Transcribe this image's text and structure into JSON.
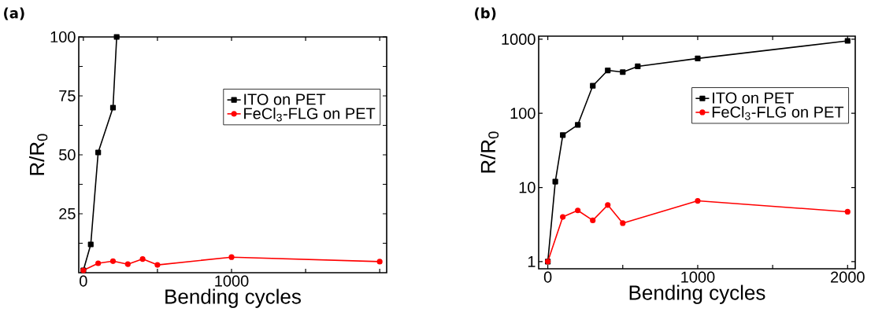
{
  "chart_data": [
    {
      "type": "line",
      "title": "(a)",
      "xlabel": "Bending cycles",
      "ylabel": "R/R$_{0}$",
      "xlim": [
        -31,
        2047
      ],
      "ylim": [
        0,
        100
      ],
      "xticks": [
        0,
        {
          "value": 500,
          "label": null
        },
        1000,
        {
          "value": 1500,
          "label": null
        },
        {
          "value": 2000,
          "label": null
        }
      ],
      "yticks": [
        {
          "value": 12.5,
          "label": null
        },
        25,
        {
          "value": 37.5,
          "label": null
        },
        50,
        {
          "value": 62.5,
          "label": null
        },
        75,
        {
          "value": 87.5,
          "label": null
        },
        100
      ],
      "legend": "top right",
      "grid": false,
      "series": [
        {
          "name": "ITO on PET",
          "color": "#000000",
          "marker": "square",
          "x": [
            0,
            50,
            100,
            200,
            225
          ],
          "values": [
            1,
            12,
            51,
            70,
            100
          ]
        },
        {
          "name": "FeCl$_{3}$-FLG on PET",
          "color": "#ff0000",
          "marker": "circle",
          "x": [
            0,
            100,
            200,
            300,
            400,
            500,
            1000,
            2000
          ],
          "values": [
            1,
            4.0,
            4.9,
            3.6,
            5.8,
            3.3,
            6.6,
            4.7
          ]
        }
      ]
    },
    {
      "type": "line",
      "title": "(b)",
      "xlabel": "Bending cycles",
      "ylabel": "R/R$_{0}$",
      "xlim": [
        -61,
        2051
      ],
      "ylim": [
        0.8,
        1100
      ],
      "log": "y",
      "xticks": [
        0,
        {
          "value": 500,
          "label": null
        },
        1000,
        {
          "value": 1500,
          "label": null
        },
        2000
      ],
      "yticks": [
        1,
        10,
        100,
        1000
      ],
      "legend": "top right",
      "grid": false,
      "series": [
        {
          "name": "ITO on PET",
          "color": "#000000",
          "marker": "square",
          "x": [
            0,
            50,
            100,
            200,
            300,
            400,
            500,
            600,
            1000,
            2000
          ],
          "values": [
            1,
            12,
            51,
            70,
            235,
            380,
            360,
            430,
            550,
            950
          ]
        },
        {
          "name": "FeCl$_{3}$-FLG on PET",
          "color": "#ff0000",
          "marker": "circle",
          "x": [
            0,
            100,
            200,
            300,
            400,
            500,
            1000,
            2000
          ],
          "values": [
            1,
            4.0,
            4.9,
            3.6,
            5.8,
            3.3,
            6.6,
            4.7
          ]
        }
      ]
    }
  ]
}
